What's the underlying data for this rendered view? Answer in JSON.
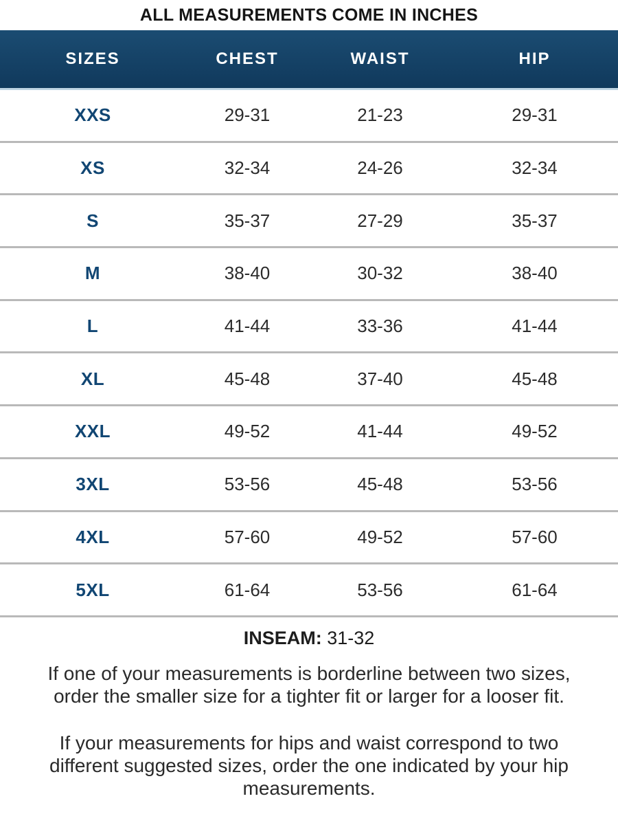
{
  "page": {
    "title": "ALL MEASUREMENTS COME IN INCHES"
  },
  "colors": {
    "header_bg": "#15456b",
    "header_text": "#ffffff",
    "header_underline": "#bdd3e2",
    "size_label_color": "#114673",
    "separator": "#b9b9b9",
    "value_text": "#2c2c2c"
  },
  "table": {
    "columns": [
      "SIZES",
      "CHEST",
      "WAIST",
      "HIP"
    ],
    "rows": [
      {
        "size": "XXS",
        "chest": "29-31",
        "waist": "21-23",
        "hip": "29-31"
      },
      {
        "size": "XS",
        "chest": "32-34",
        "waist": "24-26",
        "hip": "32-34"
      },
      {
        "size": "S",
        "chest": "35-37",
        "waist": "27-29",
        "hip": "35-37"
      },
      {
        "size": "M",
        "chest": "38-40",
        "waist": "30-32",
        "hip": "38-40"
      },
      {
        "size": "L",
        "chest": "41-44",
        "waist": "33-36",
        "hip": "41-44"
      },
      {
        "size": "XL",
        "chest": "45-48",
        "waist": "37-40",
        "hip": "45-48"
      },
      {
        "size": "XXL",
        "chest": "49-52",
        "waist": "41-44",
        "hip": "49-52"
      },
      {
        "size": "3XL",
        "chest": "53-56",
        "waist": "45-48",
        "hip": "53-56"
      },
      {
        "size": "4XL",
        "chest": "57-60",
        "waist": "49-52",
        "hip": "57-60"
      },
      {
        "size": "5XL",
        "chest": "61-64",
        "waist": "53-56",
        "hip": "61-64"
      }
    ]
  },
  "inseam": {
    "label": "INSEAM:",
    "value": "31-32"
  },
  "notes": [
    {
      "lines": [
        "If one of your measurements is borderline between two sizes,",
        "order the smaller size for a tighter fit or larger for a looser fit."
      ]
    },
    {
      "lines": [
        "If your measurements for hips and waist correspond to two",
        "different suggested sizes, order the one indicated by your hip",
        "measurements."
      ]
    }
  ]
}
